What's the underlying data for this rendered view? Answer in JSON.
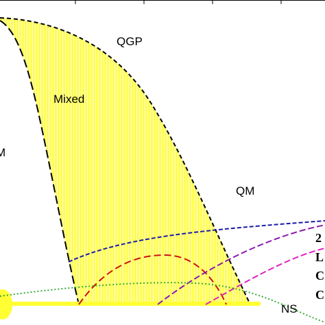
{
  "regions": [
    "QGP",
    "Mixed",
    "M",
    "QM",
    "NS"
  ],
  "legend": [
    "2",
    "L",
    "C",
    "C"
  ]
}
